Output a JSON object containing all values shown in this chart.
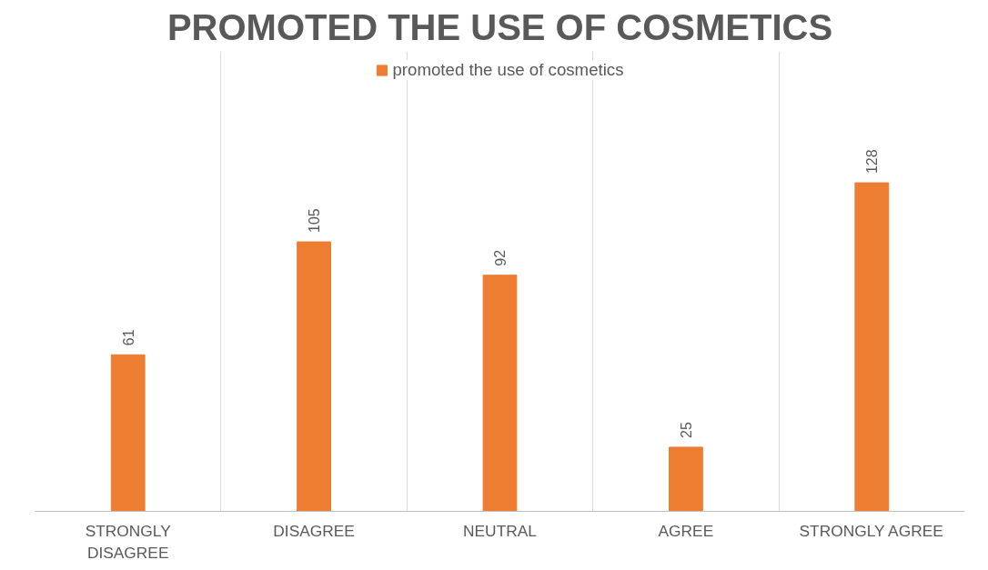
{
  "chart_data": {
    "type": "bar",
    "title": "PROMOTED THE USE OF COSMETICS",
    "categories": [
      "STRONGLY DISAGREE",
      "DISAGREE",
      "NEUTRAL",
      "AGREE",
      "STRONGLY AGREE"
    ],
    "series": [
      {
        "name": "promoted the use of cosmetics",
        "color": "#ed7d31",
        "values": [
          61,
          105,
          92,
          25,
          128
        ]
      }
    ],
    "data_labels": true,
    "grid": "x",
    "legend": "top",
    "tick_labels": "x"
  }
}
